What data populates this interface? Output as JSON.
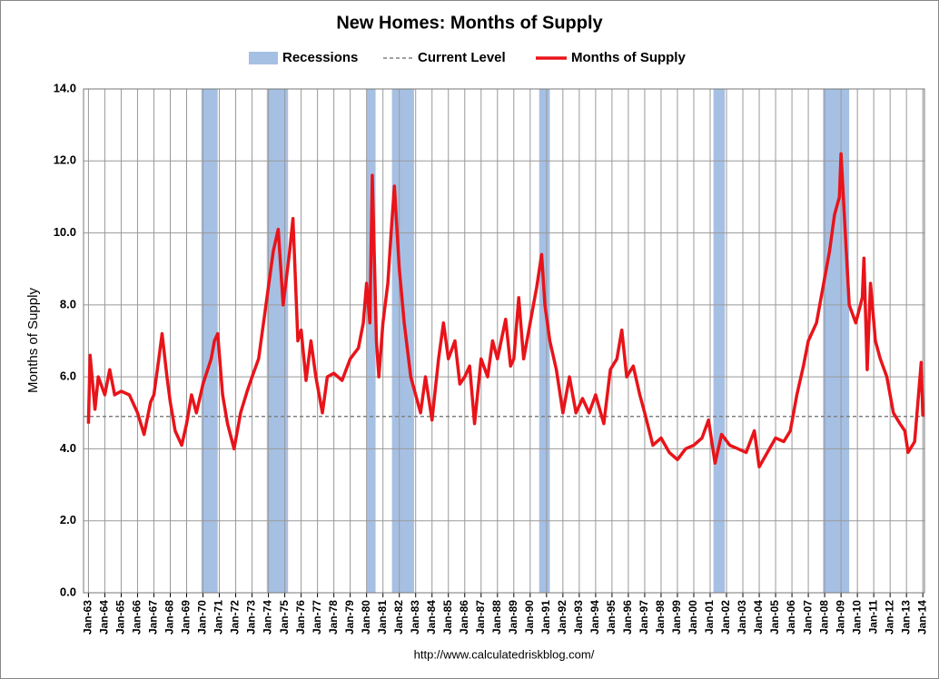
{
  "chart_data": {
    "type": "line",
    "title": "New Homes: Months of Supply",
    "y_label": "Months of Supply",
    "source": "http://www.calculatedriskblog.com/",
    "xlim": [
      1962.7,
      2014.1
    ],
    "ylim": [
      0,
      14
    ],
    "yticks": [
      {
        "value": 0,
        "label": "0.0"
      },
      {
        "value": 2,
        "label": "2.0"
      },
      {
        "value": 4,
        "label": "4.0"
      },
      {
        "value": 6,
        "label": "6.0"
      },
      {
        "value": 8,
        "label": "8.0"
      },
      {
        "value": 10,
        "label": "10.0"
      },
      {
        "value": 12,
        "label": "12.0"
      },
      {
        "value": 14,
        "label": "14.0"
      }
    ],
    "xticks": [
      {
        "value": 1963,
        "label": "Jan-63"
      },
      {
        "value": 1964,
        "label": "Jan-64"
      },
      {
        "value": 1965,
        "label": "Jan-65"
      },
      {
        "value": 1966,
        "label": "Jan-66"
      },
      {
        "value": 1967,
        "label": "Jan-67"
      },
      {
        "value": 1968,
        "label": "Jan-68"
      },
      {
        "value": 1969,
        "label": "Jan-69"
      },
      {
        "value": 1970,
        "label": "Jan-70"
      },
      {
        "value": 1971,
        "label": "Jan-71"
      },
      {
        "value": 1972,
        "label": "Jan-72"
      },
      {
        "value": 1973,
        "label": "Jan-73"
      },
      {
        "value": 1974,
        "label": "Jan-74"
      },
      {
        "value": 1975,
        "label": "Jan-75"
      },
      {
        "value": 1976,
        "label": "Jan-76"
      },
      {
        "value": 1977,
        "label": "Jan-77"
      },
      {
        "value": 1978,
        "label": "Jan-78"
      },
      {
        "value": 1979,
        "label": "Jan-79"
      },
      {
        "value": 1980,
        "label": "Jan-80"
      },
      {
        "value": 1981,
        "label": "Jan-81"
      },
      {
        "value": 1982,
        "label": "Jan-82"
      },
      {
        "value": 1983,
        "label": "Jan-83"
      },
      {
        "value": 1984,
        "label": "Jan-84"
      },
      {
        "value": 1985,
        "label": "Jan-85"
      },
      {
        "value": 1986,
        "label": "Jan-86"
      },
      {
        "value": 1987,
        "label": "Jan-87"
      },
      {
        "value": 1988,
        "label": "Jan-88"
      },
      {
        "value": 1989,
        "label": "Jan-89"
      },
      {
        "value": 1990,
        "label": "Jan-90"
      },
      {
        "value": 1991,
        "label": "Jan-91"
      },
      {
        "value": 1992,
        "label": "Jan-92"
      },
      {
        "value": 1993,
        "label": "Jan-93"
      },
      {
        "value": 1994,
        "label": "Jan-94"
      },
      {
        "value": 1995,
        "label": "Jan-95"
      },
      {
        "value": 1996,
        "label": "Jan-96"
      },
      {
        "value": 1997,
        "label": "Jan-97"
      },
      {
        "value": 1998,
        "label": "Jan-98"
      },
      {
        "value": 1999,
        "label": "Jan-99"
      },
      {
        "value": 2000,
        "label": "Jan-00"
      },
      {
        "value": 2001,
        "label": "Jan-01"
      },
      {
        "value": 2002,
        "label": "Jan-02"
      },
      {
        "value": 2003,
        "label": "Jan-03"
      },
      {
        "value": 2004,
        "label": "Jan-04"
      },
      {
        "value": 2005,
        "label": "Jan-05"
      },
      {
        "value": 2006,
        "label": "Jan-06"
      },
      {
        "value": 2007,
        "label": "Jan-07"
      },
      {
        "value": 2008,
        "label": "Jan-08"
      },
      {
        "value": 2009,
        "label": "Jan-09"
      },
      {
        "value": 2010,
        "label": "Jan-10"
      },
      {
        "value": 2011,
        "label": "Jan-11"
      },
      {
        "value": 2012,
        "label": "Jan-12"
      },
      {
        "value": 2013,
        "label": "Jan-13"
      },
      {
        "value": 2014,
        "label": "Jan-14"
      }
    ],
    "grid": true,
    "recessions": {
      "name": "Recessions",
      "color": "#a6c0e4",
      "ranges": [
        [
          1969.9,
          1970.9
        ],
        [
          1973.9,
          1975.2
        ],
        [
          1980.0,
          1980.55
        ],
        [
          1981.55,
          1982.9
        ],
        [
          1990.55,
          1991.2
        ],
        [
          2001.2,
          2001.9
        ],
        [
          2007.9,
          2009.5
        ]
      ]
    },
    "current_level": {
      "name": "Current Level",
      "color": "#808080",
      "value": 4.9
    },
    "series": [
      {
        "name": "Months of Supply",
        "color": "#e8141a",
        "x": [
          1963.0,
          1963.1,
          1963.4,
          1963.6,
          1964.0,
          1964.3,
          1964.6,
          1965.0,
          1965.5,
          1966.0,
          1966.4,
          1966.8,
          1967.0,
          1967.3,
          1967.5,
          1967.8,
          1968.0,
          1968.3,
          1968.7,
          1969.0,
          1969.3,
          1969.6,
          1970.0,
          1970.5,
          1970.7,
          1970.9,
          1971.2,
          1971.5,
          1971.9,
          1972.3,
          1972.7,
          1973.0,
          1973.4,
          1973.7,
          1974.0,
          1974.3,
          1974.6,
          1974.9,
          1975.3,
          1975.5,
          1975.8,
          1976.0,
          1976.3,
          1976.6,
          1976.9,
          1977.3,
          1977.6,
          1978.0,
          1978.5,
          1979.0,
          1979.5,
          1979.8,
          1980.0,
          1980.2,
          1980.35,
          1980.6,
          1980.75,
          1981.0,
          1981.3,
          1981.5,
          1981.7,
          1982.0,
          1982.3,
          1982.7,
          1983.0,
          1983.3,
          1983.6,
          1984.0,
          1984.4,
          1984.7,
          1985.0,
          1985.4,
          1985.7,
          1986.0,
          1986.3,
          1986.6,
          1987.0,
          1987.4,
          1987.7,
          1988.0,
          1988.5,
          1988.8,
          1989.0,
          1989.3,
          1989.6,
          1990.0,
          1990.4,
          1990.7,
          1990.9,
          1991.2,
          1991.6,
          1992.0,
          1992.4,
          1992.8,
          1993.2,
          1993.6,
          1994.0,
          1994.5,
          1994.9,
          1995.3,
          1995.6,
          1995.9,
          1996.3,
          1996.7,
          1997.0,
          1997.5,
          1998.0,
          1998.5,
          1999.0,
          1999.5,
          2000.0,
          2000.5,
          2000.9,
          2001.3,
          2001.7,
          2002.2,
          2002.7,
          2003.2,
          2003.7,
          2004.0,
          2004.5,
          2005.0,
          2005.5,
          2005.9,
          2006.3,
          2006.7,
          2007.0,
          2007.5,
          2007.9,
          2008.3,
          2008.6,
          2008.9,
          2009.0,
          2009.2,
          2009.5,
          2009.9,
          2010.3,
          2010.4,
          2010.6,
          2010.8,
          2011.1,
          2011.4,
          2011.8,
          2012.2,
          2012.6,
          2012.9,
          2013.1,
          2013.5,
          2013.7,
          2013.9,
          2014.0
        ],
        "values": [
          4.7,
          6.6,
          5.1,
          6.0,
          5.5,
          6.2,
          5.5,
          5.6,
          5.5,
          5.0,
          4.4,
          5.3,
          5.5,
          6.5,
          7.2,
          6.0,
          5.3,
          4.5,
          4.1,
          4.7,
          5.5,
          5.0,
          5.8,
          6.5,
          7.0,
          7.2,
          5.5,
          4.7,
          4.0,
          5.0,
          5.6,
          6.0,
          6.5,
          7.5,
          8.5,
          9.5,
          10.1,
          8.0,
          9.5,
          10.4,
          7.0,
          7.3,
          5.9,
          7.0,
          6.0,
          5.0,
          6.0,
          6.1,
          5.9,
          6.5,
          6.8,
          7.5,
          8.6,
          7.5,
          11.6,
          7.0,
          6.0,
          7.5,
          8.6,
          10.0,
          11.3,
          9.0,
          7.5,
          6.0,
          5.5,
          5.0,
          6.0,
          4.8,
          6.5,
          7.5,
          6.5,
          7.0,
          5.8,
          6.0,
          6.3,
          4.7,
          6.5,
          6.0,
          7.0,
          6.5,
          7.6,
          6.3,
          6.5,
          8.2,
          6.5,
          7.5,
          8.5,
          9.4,
          8.0,
          7.0,
          6.2,
          5.0,
          6.0,
          5.0,
          5.4,
          5.0,
          5.5,
          4.7,
          6.2,
          6.5,
          7.3,
          6.0,
          6.3,
          5.5,
          5.0,
          4.1,
          4.3,
          3.9,
          3.7,
          4.0,
          4.1,
          4.3,
          4.8,
          3.6,
          4.4,
          4.1,
          4.0,
          3.9,
          4.5,
          3.5,
          3.9,
          4.3,
          4.2,
          4.5,
          5.5,
          6.3,
          7.0,
          7.5,
          8.5,
          9.5,
          10.5,
          11.0,
          12.2,
          10.5,
          8.0,
          7.5,
          8.2,
          9.3,
          6.2,
          8.6,
          7.0,
          6.5,
          6.0,
          5.0,
          4.7,
          4.5,
          3.9,
          4.2,
          5.3,
          6.4,
          4.9
        ]
      }
    ]
  }
}
